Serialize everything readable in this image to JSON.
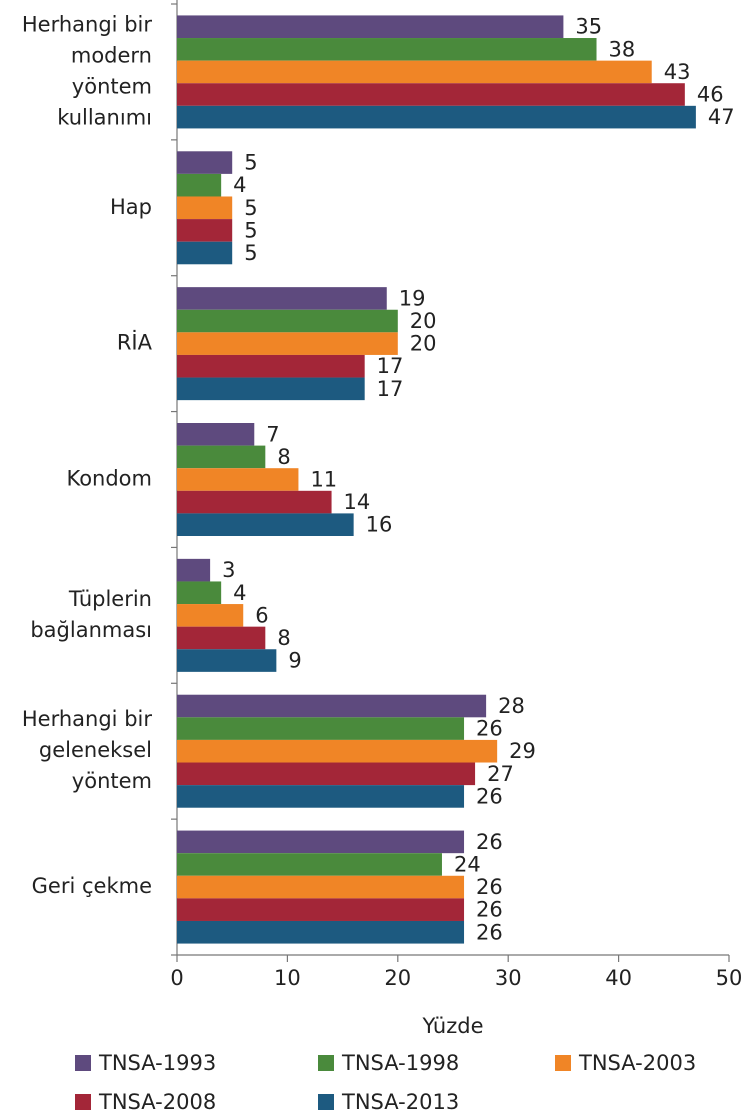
{
  "chart_data": {
    "type": "bar",
    "orientation": "horizontal",
    "x_label": "Yüzde",
    "categories": [
      "Herhangi bir\nmodern\nyöntem\nkullanımı",
      "Hap",
      "RİA",
      "Kondom",
      "Tüplerin\nbağlanması",
      "Herhangi bir\ngeleneksel\nyöntem",
      "Geri çekme"
    ],
    "series": [
      {
        "name": "TNSA-1993",
        "color": "#5e4a7e",
        "values": [
          35,
          5,
          19,
          7,
          3,
          28,
          26
        ]
      },
      {
        "name": "TNSA-1998",
        "color": "#4a8a3c",
        "values": [
          38,
          4,
          20,
          8,
          4,
          26,
          24
        ]
      },
      {
        "name": "TNSA-2003",
        "color": "#f08526",
        "values": [
          43,
          5,
          20,
          11,
          6,
          29,
          26
        ]
      },
      {
        "name": "TNSA-2008",
        "color": "#a32638",
        "values": [
          46,
          5,
          17,
          14,
          8,
          27,
          26
        ]
      },
      {
        "name": "TNSA-2013",
        "color": "#1d5a80",
        "values": [
          47,
          5,
          17,
          16,
          9,
          26,
          26
        ]
      }
    ],
    "xlim": [
      0,
      50
    ],
    "xticks": [
      0,
      10,
      20,
      30,
      40,
      50
    ],
    "grid": false,
    "legend": "bottom"
  }
}
